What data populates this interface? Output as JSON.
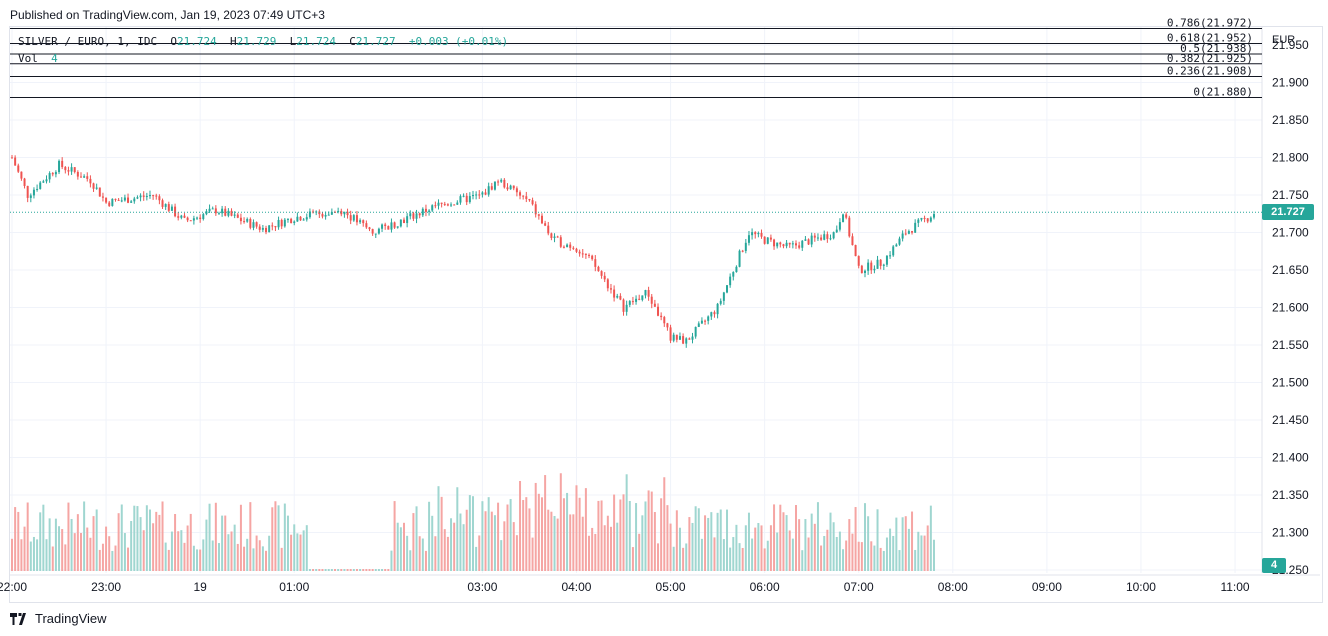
{
  "header": {
    "published": "Published on TradingView.com, Jan 19, 2023 07:49 UTC+3"
  },
  "legend": {
    "symbol": "SILVER / EURO, 1, IDC",
    "o_label": "O",
    "o_value": "21.724",
    "h_label": "H",
    "h_value": "21.729",
    "l_label": "L",
    "l_value": "21.724",
    "c_label": "C",
    "c_value": "21.727",
    "change": "+0.003 (+0.01%)",
    "vol_label": "Vol",
    "vol_value": "4"
  },
  "price_axis": {
    "currency": "EUR",
    "last_price_tag": "21.727",
    "volume_tag": "4"
  },
  "brand": {
    "name": "TradingView"
  },
  "colors": {
    "up": "#26a69a",
    "down": "#ef5350",
    "vol_up": "#9fd6d0",
    "vol_down": "#f5a5a3",
    "grid": "#f0f3fa",
    "fib_line": "#131722",
    "last_price_line": "#26a69a"
  },
  "chart_data": {
    "type": "candlestick",
    "symbol": "SILVER / EURO",
    "interval": "1",
    "exchange": "IDC",
    "ylim": [
      21.25,
      21.97
    ],
    "y_ticks": [
      "21.950",
      "21.900",
      "21.850",
      "21.800",
      "21.750",
      "21.700",
      "21.650",
      "21.600",
      "21.550",
      "21.500",
      "21.450",
      "21.400",
      "21.350",
      "21.300",
      "21.250"
    ],
    "x_ticks": [
      "22:00",
      "23:00",
      "19",
      "01:00",
      "03:00",
      "04:00",
      "05:00",
      "06:00",
      "07:00",
      "08:00",
      "09:00",
      "10:00",
      "11:00"
    ],
    "grid": true,
    "last_price": 21.727,
    "fibonacci": [
      {
        "level": "0.786",
        "price": 21.972
      },
      {
        "level": "0.618",
        "price": 21.952
      },
      {
        "level": "0.5",
        "price": 21.938
      },
      {
        "level": "0.382",
        "price": 21.925
      },
      {
        "level": "0.236",
        "price": 21.908
      },
      {
        "level": "0",
        "price": 21.88
      }
    ],
    "price_path": [
      {
        "time": "22:00",
        "price": 21.8
      },
      {
        "time": "22:10",
        "price": 21.75
      },
      {
        "time": "22:30",
        "price": 21.79
      },
      {
        "time": "22:50",
        "price": 21.77
      },
      {
        "time": "23:00",
        "price": 21.74
      },
      {
        "time": "23:30",
        "price": 21.75
      },
      {
        "time": "23:50",
        "price": 21.715
      },
      {
        "time": "00:10",
        "price": 21.73
      },
      {
        "time": "00:40",
        "price": 21.705
      },
      {
        "time": "01:00",
        "price": 21.72
      },
      {
        "time": "01:30",
        "price": 21.73
      },
      {
        "time": "01:50",
        "price": 21.7
      },
      {
        "time": "02:30",
        "price": 21.735
      },
      {
        "time": "03:00",
        "price": 21.75
      },
      {
        "time": "03:10",
        "price": 21.77
      },
      {
        "time": "03:30",
        "price": 21.74
      },
      {
        "time": "03:45",
        "price": 21.69
      },
      {
        "time": "04:00",
        "price": 21.68
      },
      {
        "time": "04:10",
        "price": 21.66
      },
      {
        "time": "04:30",
        "price": 21.6
      },
      {
        "time": "04:45",
        "price": 21.62
      },
      {
        "time": "05:00",
        "price": 21.56
      },
      {
        "time": "05:10",
        "price": 21.555
      },
      {
        "time": "05:30",
        "price": 21.6
      },
      {
        "time": "05:50",
        "price": 21.7
      },
      {
        "time": "06:00",
        "price": 21.69
      },
      {
        "time": "06:15",
        "price": 21.68
      },
      {
        "time": "06:30",
        "price": 21.69
      },
      {
        "time": "06:45",
        "price": 21.7
      },
      {
        "time": "06:50",
        "price": 21.73
      },
      {
        "time": "07:00",
        "price": 21.65
      },
      {
        "time": "07:15",
        "price": 21.66
      },
      {
        "time": "07:30",
        "price": 21.7
      },
      {
        "time": "07:49",
        "price": 21.727
      }
    ]
  }
}
